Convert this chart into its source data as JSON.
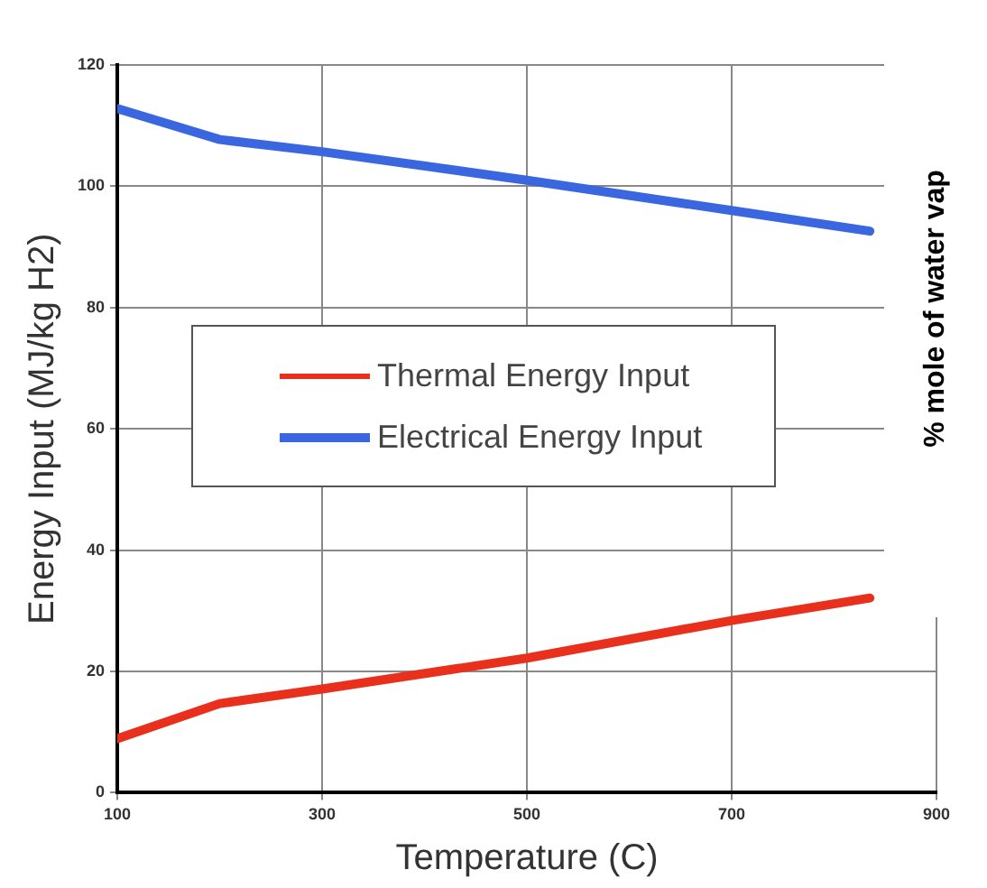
{
  "chart_data": {
    "type": "line",
    "xlabel": "Temperature (C)",
    "ylabel": "Energy Input (MJ/kg H2)",
    "annotations": [
      "% mole of water vap"
    ],
    "xlim": [
      100,
      900
    ],
    "xticks": [
      100,
      300,
      500,
      700,
      900
    ],
    "ylim": [
      0,
      120
    ],
    "yticks": [
      0,
      20,
      40,
      60,
      80,
      100,
      120
    ],
    "grid": true,
    "legend": "left",
    "marker": "none",
    "line_style": "solid",
    "series": [
      {
        "name": "Thermal Energy Input",
        "color": "#e8301c",
        "x": [
          100,
          200,
          300,
          500,
          700,
          835
        ],
        "values": [
          8.9,
          14.7,
          17.1,
          22.2,
          28.4,
          32.1
        ]
      },
      {
        "name": "Electrical Energy Input",
        "color": "#3a66e0",
        "x": [
          100,
          200,
          300,
          500,
          700,
          835
        ],
        "values": [
          112.8,
          107.7,
          105.7,
          101,
          96,
          92.6
        ]
      }
    ]
  }
}
